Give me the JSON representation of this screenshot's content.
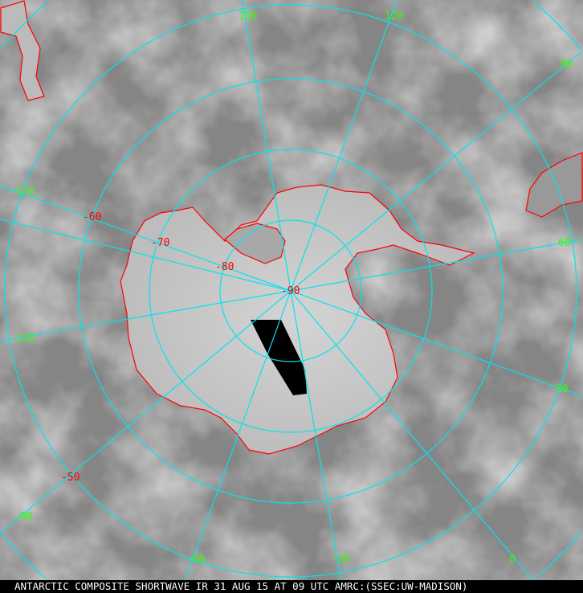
{
  "caption": "ANTARCTIC COMPOSITE SHORTWAVE IR 31 AUG 15 AT 09 UTC AMRC:(SSEC:UW-MADISON)",
  "colors": {
    "grid": "#00e5ee",
    "coast": "#ff0000",
    "lon_label": "#33ff00",
    "lat_label": "#ff0000",
    "background": "#8a8a8a",
    "caption_bg": "#000000",
    "caption_text": "#ffffff"
  },
  "longitude_labels": [
    "150",
    "120",
    "90",
    "60",
    "30",
    "0",
    "-30",
    "-60",
    "-90",
    "-120",
    "-150"
  ],
  "latitude_labels": [
    "-50",
    "-60",
    "-70",
    "-80",
    "-90"
  ],
  "projection": "polar stereographic, south pole centered"
}
